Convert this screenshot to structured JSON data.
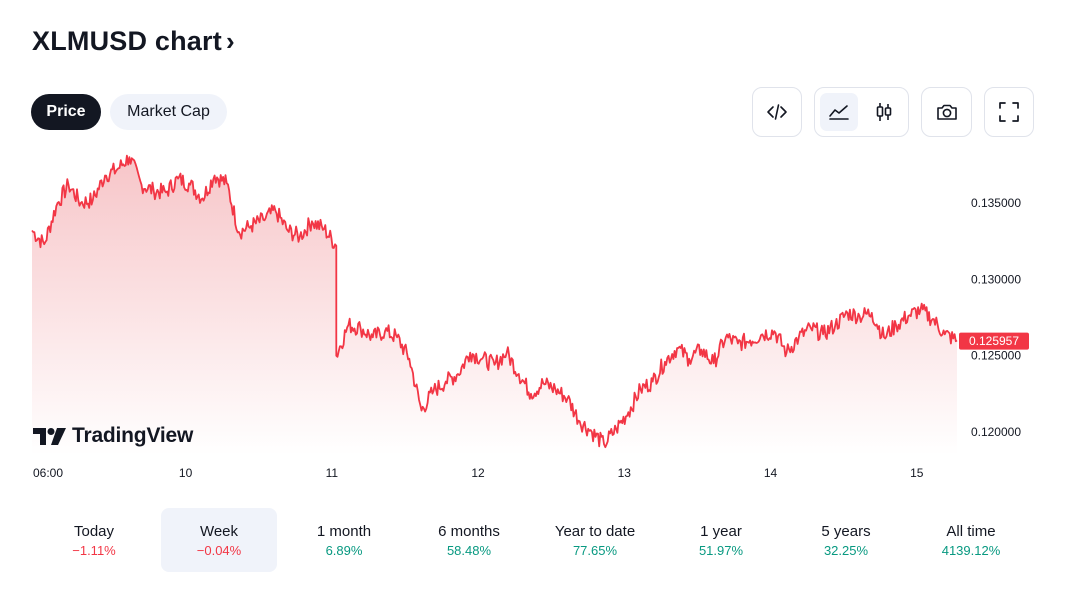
{
  "header": {
    "title": "XLMUSD chart",
    "title_chevron": "›"
  },
  "tabs": [
    {
      "label": "Price",
      "active": true
    },
    {
      "label": "Market Cap",
      "active": false
    }
  ],
  "toolbar": {
    "embed_icon": "code-embed-icon",
    "area_chart_icon": "area-chart-icon",
    "candles_icon": "candlestick-icon",
    "snapshot_icon": "camera-icon",
    "fullscreen_icon": "fullscreen-icon",
    "active_chart_type": "area"
  },
  "watermark": "TradingView",
  "colors": {
    "line": "#f23645",
    "area_top": "#f7c5c8",
    "area_bottom": "#ffffff",
    "price_tag": "#f23645",
    "positive": "#089981",
    "negative": "#f23645"
  },
  "chart_data": {
    "type": "area",
    "title": "",
    "xlabel": "",
    "ylabel": "",
    "ylim": [
      0.1185,
      0.1385
    ],
    "x_tick_labels": [
      "06:00",
      "10",
      "11",
      "12",
      "13",
      "14",
      "15"
    ],
    "y_tick_labels": [
      "0.135000",
      "0.130000",
      "0.125000",
      "0.120000"
    ],
    "y_ticks": [
      0.135,
      0.13,
      0.125,
      0.12
    ],
    "last_price_label": "0.125957",
    "last_price": 0.125957,
    "grid": false,
    "series": [
      {
        "x": [
          0,
          0.25,
          0.5,
          0.75,
          1,
          1.25,
          1.5,
          1.75,
          2,
          2.25,
          2.5,
          2.75,
          3,
          3.25,
          3.5,
          3.75,
          4,
          4.25,
          4.5,
          4.75,
          5,
          5.25,
          5.5,
          5.75,
          6,
          6.25,
          6.25,
          6.5,
          6.75,
          7,
          7.25,
          7.5,
          7.75,
          8,
          8.25,
          8.5,
          8.75,
          9,
          9.25,
          9.5,
          9.75,
          10,
          10.25,
          10.5,
          10.75,
          11,
          11.25,
          11.5,
          11.75,
          12,
          12.25,
          12.5,
          12.75,
          13,
          13.25,
          13.5,
          13.75,
          14,
          14.25,
          14.5,
          14.75,
          15,
          15.25,
          15.5,
          15.75,
          16,
          16.25,
          16.5,
          16.75,
          17,
          17.25,
          17.5,
          17.75,
          18,
          18.25,
          18.5,
          18.75,
          19
        ],
        "y": [
          0.1332,
          0.1323,
          0.1348,
          0.1362,
          0.135,
          0.1352,
          0.1368,
          0.1372,
          0.138,
          0.1362,
          0.1358,
          0.1357,
          0.1366,
          0.1362,
          0.1353,
          0.1368,
          0.1363,
          0.1331,
          0.1335,
          0.1339,
          0.1345,
          0.1332,
          0.1328,
          0.1338,
          0.1333,
          0.1322,
          0.125,
          0.127,
          0.1268,
          0.1262,
          0.1266,
          0.1262,
          0.1248,
          0.1214,
          0.1227,
          0.1233,
          0.1238,
          0.1252,
          0.1248,
          0.1244,
          0.1252,
          0.1238,
          0.1225,
          0.1232,
          0.1228,
          0.1222,
          0.1207,
          0.12,
          0.1192,
          0.1202,
          0.1213,
          0.1228,
          0.1233,
          0.1246,
          0.1255,
          0.1248,
          0.1254,
          0.1245,
          0.1262,
          0.1258,
          0.126,
          0.1264,
          0.1266,
          0.1252,
          0.1262,
          0.1268,
          0.1264,
          0.127,
          0.1278,
          0.1276,
          0.1278,
          0.1262,
          0.127,
          0.1276,
          0.128,
          0.1274,
          0.1264,
          0.126
        ]
      }
    ]
  },
  "timeframes": [
    {
      "label": "Today",
      "change": "−1.11%",
      "sign": "neg",
      "active": false
    },
    {
      "label": "Week",
      "change": "−0.04%",
      "sign": "neg",
      "active": true
    },
    {
      "label": "1 month",
      "change": "6.89%",
      "sign": "pos",
      "active": false
    },
    {
      "label": "6 months",
      "change": "58.48%",
      "sign": "pos",
      "active": false
    },
    {
      "label": "Year to date",
      "change": "77.65%",
      "sign": "pos",
      "active": false
    },
    {
      "label": "1 year",
      "change": "51.97%",
      "sign": "pos",
      "active": false
    },
    {
      "label": "5 years",
      "change": "32.25%",
      "sign": "pos",
      "active": false
    },
    {
      "label": "All time",
      "change": "4139.12%",
      "sign": "pos",
      "active": false
    }
  ]
}
